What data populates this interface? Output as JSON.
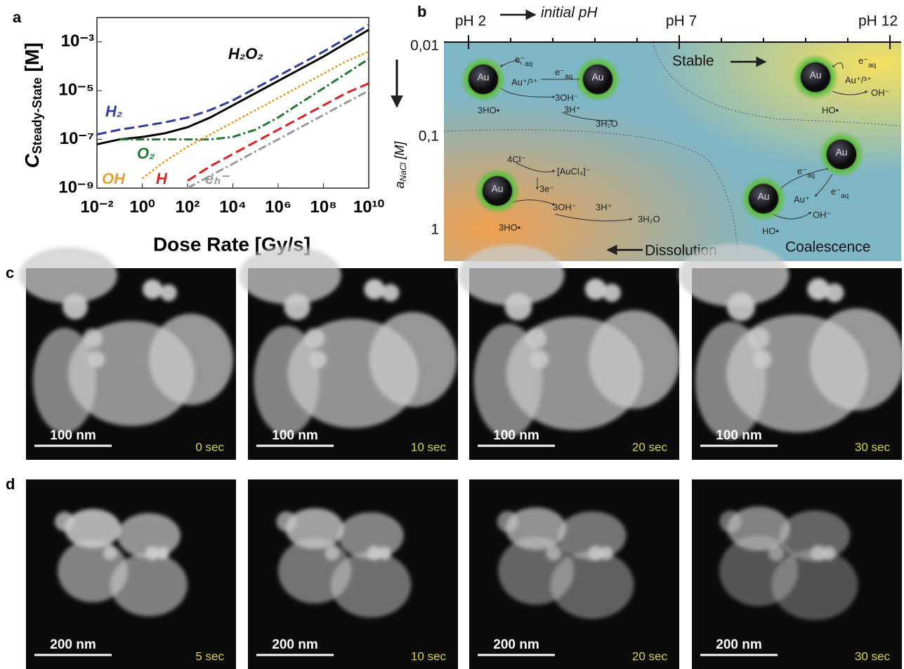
{
  "chart_data": {
    "type": "line",
    "panel_label": "a",
    "log_x": true,
    "log_y": true,
    "xlabel": "Dose Rate [Gy/s]",
    "ylabel": {
      "symbol": "C",
      "subscript": "Steady-State",
      "unit": "[M]"
    },
    "x": [
      0.01,
      0.1,
      1,
      10,
      100,
      1000,
      10000,
      100000,
      1000000,
      10000000,
      100000000,
      1000000000,
      10000000000
    ],
    "xlim": [
      0.01,
      10000000000
    ],
    "xticks": [
      {
        "value": 0.01,
        "label": "10⁻²"
      },
      {
        "value": 1,
        "label": "10⁰"
      },
      {
        "value": 100,
        "label": "10²"
      },
      {
        "value": 10000,
        "label": "10⁴"
      },
      {
        "value": 1000000,
        "label": "10⁶"
      },
      {
        "value": 100000000,
        "label": "10⁸"
      },
      {
        "value": 10000000000,
        "label": "10¹⁰"
      }
    ],
    "ylim": [
      1e-09,
      0.01
    ],
    "yticks": [
      {
        "value": 1e-09,
        "label": "10⁻⁹"
      },
      {
        "value": 1e-07,
        "label": "10⁻⁷"
      },
      {
        "value": 1e-05,
        "label": "10⁻⁵"
      },
      {
        "value": 0.001,
        "label": "10⁻³"
      }
    ],
    "series": [
      {
        "name": "H₂O₂",
        "color": "#000000",
        "style": "solid",
        "values": [
          6.3e-08,
          1e-07,
          1.26e-07,
          1.78e-07,
          3.16e-07,
          7.9e-07,
          2.5e-06,
          7.9e-06,
          2.5e-05,
          7.9e-05,
          0.00025,
          0.00089,
          0.00316
        ]
      },
      {
        "name": "H₂",
        "color": "#2b3b9e",
        "style": "dash",
        "values": [
          1.6e-07,
          2.5e-07,
          3.5e-07,
          5e-07,
          7.9e-07,
          1.6e-06,
          4e-06,
          1.26e-05,
          4e-05,
          0.000126,
          0.0004,
          0.0014,
          0.005
        ]
      },
      {
        "name": "O₂",
        "color": "#1e7a2e",
        "style": "dashdot",
        "values": [
          null,
          1e-07,
          1e-07,
          1e-07,
          1e-07,
          1e-07,
          1.26e-07,
          2.5e-07,
          7.9e-07,
          3.2e-06,
          1.26e-05,
          5e-05,
          0.0002
        ]
      },
      {
        "name": "OH",
        "color": "#e8a030",
        "style": "dot",
        "values": [
          null,
          null,
          2.5e-09,
          1.26e-08,
          5e-08,
          1.6e-07,
          5e-07,
          1.6e-06,
          5e-06,
          1.6e-05,
          5e-05,
          0.00016,
          0.0004
        ]
      },
      {
        "name": "H",
        "color": "#e02020",
        "style": "dash",
        "values": [
          null,
          null,
          null,
          null,
          2e-09,
          7.9e-09,
          2.5e-08,
          7.9e-08,
          2.5e-07,
          7.9e-07,
          2.5e-06,
          7.9e-06,
          2e-05
        ]
      },
      {
        "name": "eₕ⁻",
        "color": "#999999",
        "style": "dashdot",
        "values": [
          null,
          null,
          null,
          null,
          1e-09,
          3.2e-09,
          1e-08,
          3.2e-08,
          1e-07,
          3.2e-07,
          1e-06,
          3.2e-06,
          1e-05
        ]
      }
    ]
  },
  "diagram": {
    "panel_label": "b",
    "ph_labels": [
      "pH 2",
      "pH 7",
      "pH 12"
    ],
    "ph_axis_title": "initial pH",
    "y_labels": [
      "0,01",
      "0,1",
      "1"
    ],
    "y_axis_title": {
      "symbol": "a",
      "subscript": "NaCl",
      "unit": "[M]"
    },
    "regions": [
      "Stable",
      "Dissolution",
      "Coalescence"
    ],
    "particle_label": "Au",
    "species": [
      {
        "base": "e⁻",
        "sub": "aq"
      },
      "Au⁺/³⁺",
      {
        "base": "e⁻",
        "sub": "aq"
      },
      "3OH⁻",
      "3HO•",
      "3H⁺",
      "3H₂O",
      {
        "base": "e⁻",
        "sub": "aq"
      },
      "Au⁺/³⁺",
      "OH⁻",
      "HO•",
      "4Cl⁻",
      "[AuCl₄]⁻",
      "3e⁻",
      "3OH⁻",
      "3H⁺",
      "3H₂O",
      "3HO•",
      {
        "base": "e⁻",
        "sub": "aq"
      },
      {
        "base": "e⁻",
        "sub": "aq"
      },
      "Au⁺",
      "OH⁻",
      "HO•"
    ]
  },
  "micrographs": {
    "panel_c": {
      "label": "c",
      "scale_bar": "100 nm",
      "times": [
        "0 sec",
        "10 sec",
        "20 sec",
        "30 sec"
      ]
    },
    "panel_d": {
      "label": "d",
      "scale_bar": "200 nm",
      "times": [
        "5 sec",
        "10 sec",
        "20 sec",
        "30 sec"
      ]
    }
  }
}
